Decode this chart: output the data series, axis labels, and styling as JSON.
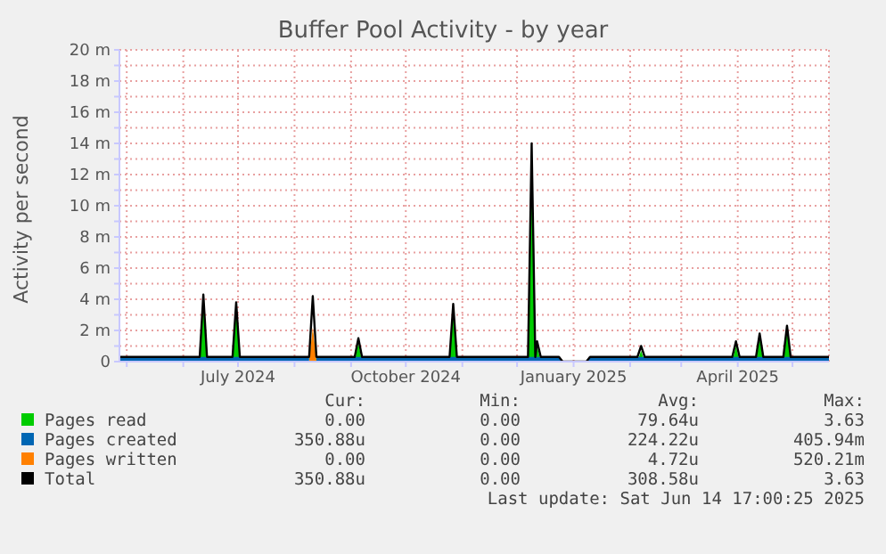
{
  "chart_data": {
    "type": "area",
    "title": "Buffer Pool Activity - by year",
    "ylabel": "Activity per second",
    "grid": true,
    "legend": "bottom",
    "xlim": [
      "2024-04-27",
      "2025-05-21"
    ],
    "xticks": [
      {
        "value": "2024-05-01",
        "label": null
      },
      {
        "value": "2024-06-01",
        "label": null
      },
      {
        "value": "2024-07-01",
        "label": "July 2024"
      },
      {
        "value": "2024-08-01",
        "label": null
      },
      {
        "value": "2024-09-01",
        "label": null
      },
      {
        "value": "2024-10-01",
        "label": "October 2024"
      },
      {
        "value": "2024-11-01",
        "label": null
      },
      {
        "value": "2024-12-01",
        "label": null
      },
      {
        "value": "2025-01-01",
        "label": "January 2025"
      },
      {
        "value": "2025-02-01",
        "label": null
      },
      {
        "value": "2025-03-01",
        "label": null
      },
      {
        "value": "2025-04-01",
        "label": "April 2025"
      },
      {
        "value": "2025-05-01",
        "label": null
      }
    ],
    "ylim": [
      0,
      20
    ],
    "yticks": [
      0,
      {
        "value": 1,
        "label": null
      },
      {
        "value": 2,
        "label": "2 m"
      },
      {
        "value": 3,
        "label": null
      },
      {
        "value": 4,
        "label": "4 m"
      },
      {
        "value": 5,
        "label": null
      },
      {
        "value": 6,
        "label": "6 m"
      },
      {
        "value": 7,
        "label": null
      },
      {
        "value": 8,
        "label": "8 m"
      },
      {
        "value": 9,
        "label": null
      },
      {
        "value": 10,
        "label": "10 m"
      },
      {
        "value": 11,
        "label": null
      },
      {
        "value": 12,
        "label": "12 m"
      },
      {
        "value": 13,
        "label": null
      },
      {
        "value": 14,
        "label": "14 m"
      },
      {
        "value": 15,
        "label": null
      },
      {
        "value": 16,
        "label": "16 m"
      },
      {
        "value": 17,
        "label": null
      },
      {
        "value": 18,
        "label": "18 m"
      },
      {
        "value": 19,
        "label": null
      },
      {
        "value": 20,
        "label": "20 m"
      }
    ],
    "x": [
      "2024-04-27",
      "2024-05-10",
      "2024-05-24",
      "2024-06-07",
      "2024-06-10",
      "2024-06-12",
      "2024-06-14",
      "2024-06-28",
      "2024-06-30",
      "2024-07-02",
      "2024-07-15",
      "2024-07-29",
      "2024-08-09",
      "2024-08-11",
      "2024-08-13",
      "2024-08-25",
      "2024-09-03",
      "2024-09-05",
      "2024-09-07",
      "2024-09-20",
      "2024-10-05",
      "2024-10-15",
      "2024-10-25",
      "2024-10-27",
      "2024-10-29",
      "2024-11-10",
      "2024-11-25",
      "2024-12-07",
      "2024-12-09",
      "2024-12-11",
      "2024-12-12",
      "2024-12-14",
      "2024-12-24",
      "2024-12-26",
      "2025-01-08",
      "2025-01-10",
      "2025-01-25",
      "2025-02-05",
      "2025-02-07",
      "2025-02-09",
      "2025-02-25",
      "2025-03-12",
      "2025-03-29",
      "2025-03-31",
      "2025-04-02",
      "2025-04-11",
      "2025-04-13",
      "2025-04-15",
      "2025-04-26",
      "2025-04-28",
      "2025-04-30",
      "2025-05-10",
      "2025-05-21"
    ],
    "series": [
      {
        "name": "Pages read",
        "color": "#00cc00",
        "values": [
          0,
          0,
          0,
          0,
          0,
          4,
          0,
          0,
          3.5,
          0,
          0,
          0,
          0,
          1.9,
          0,
          0,
          0,
          1.2,
          0,
          0,
          0,
          0,
          0,
          3.4,
          0,
          0,
          0,
          0,
          13.7,
          0,
          1,
          0,
          0,
          0,
          0,
          0,
          0,
          0,
          0.7,
          0,
          0,
          0,
          0,
          1,
          0,
          0,
          1.5,
          0,
          0,
          2,
          0,
          0,
          0
        ]
      },
      {
        "name": "Pages created",
        "color": "#0066b3",
        "values": [
          0.3,
          0.3,
          0.3,
          0.3,
          0.3,
          0.3,
          0.3,
          0.3,
          0.3,
          0.3,
          0.3,
          0.3,
          0.3,
          null,
          0.3,
          0.3,
          0.3,
          0.3,
          0.3,
          0.3,
          0.3,
          0.3,
          0.3,
          0.3,
          0.3,
          0.3,
          0.3,
          0.3,
          0.3,
          0.3,
          0.3,
          0.3,
          0.3,
          0,
          0,
          0.3,
          0.3,
          0.3,
          0.3,
          0.3,
          0.3,
          0.3,
          0.3,
          0.3,
          0.3,
          0.3,
          0.3,
          0.3,
          0.3,
          0.3,
          0.3,
          0.3,
          0.3
        ]
      },
      {
        "name": "Pages written",
        "color": "#ff8000",
        "values": [
          0,
          0,
          0,
          0,
          0,
          0,
          0,
          0,
          0,
          0,
          0,
          0,
          0,
          2.2,
          0,
          0,
          0,
          0,
          0,
          0,
          0,
          0,
          0,
          0,
          0,
          0,
          0,
          0,
          0,
          0,
          0,
          0,
          0,
          0,
          0,
          0,
          0,
          0,
          0,
          0,
          0,
          0,
          0,
          0,
          0,
          0,
          0,
          0,
          0,
          0,
          0,
          0,
          0
        ]
      },
      {
        "name": "Total",
        "color": "#000000",
        "type": "line",
        "values": [
          0.3,
          0.3,
          0.3,
          0.3,
          0.3,
          4.3,
          0.3,
          0.3,
          3.8,
          0.3,
          0.3,
          0.3,
          0.3,
          4.2,
          0.3,
          0.3,
          0.3,
          1.5,
          0.3,
          0.3,
          0.3,
          0.3,
          0.3,
          3.7,
          0.3,
          0.3,
          0.3,
          0.3,
          14,
          0.3,
          1.3,
          0.3,
          0.3,
          0,
          0,
          0.3,
          0.3,
          0.3,
          1,
          0.3,
          0.3,
          0.3,
          0.3,
          1.3,
          0.3,
          0.3,
          1.8,
          0.3,
          0.3,
          2.3,
          0.3,
          0.3,
          0.3
        ]
      }
    ],
    "annotations": [
      "Cur:",
      "Min:",
      "Avg:",
      "Max:",
      "0.00",
      "0.00",
      "79.64u",
      "3.63",
      "350.88u",
      "0.00",
      "224.22u",
      "405.94m",
      "0.00",
      "0.00",
      "4.72u",
      "520.21m",
      "350.88u",
      "0.00",
      "308.58u",
      "3.63",
      "Last update: Sat Jun 14 17:00:25 2025"
    ]
  }
}
